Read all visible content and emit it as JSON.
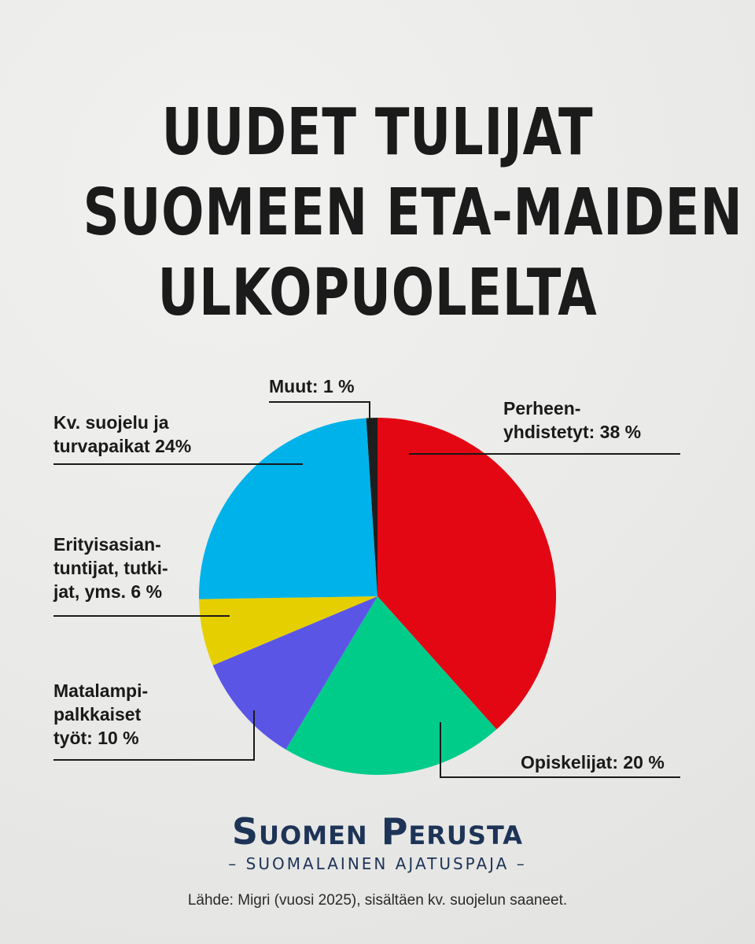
{
  "title": {
    "lines": [
      "UUDET TULIJAT",
      "SUOMEEN ETA-MAIDEN",
      "ULKOPUOLELTA"
    ]
  },
  "chart_data": {
    "type": "pie",
    "start_angle_deg": 0,
    "slices": [
      {
        "label_lines": [
          "Perheen-",
          "yhdistetyt: 38 %"
        ],
        "value": 38,
        "color": "#e30613"
      },
      {
        "label_lines": [
          "Opiskelijat: 20 %"
        ],
        "value": 20,
        "color": "#00cc8a"
      },
      {
        "label_lines": [
          "Matalampi-",
          "palkkaiset",
          "työt: 10 %"
        ],
        "value": 10,
        "color": "#5b55e6"
      },
      {
        "label_lines": [
          "Erityisasian-",
          "tuntijat, tutki-",
          "jat, yms. 6 %"
        ],
        "value": 6,
        "color": "#e5cf00"
      },
      {
        "label_lines": [
          "Kv. suojelu ja",
          "turvapaikat 24%"
        ],
        "value": 24,
        "color": "#00b2ea"
      },
      {
        "label_lines": [
          "Muut: 1 %"
        ],
        "value": 1,
        "color": "#1e1e1e"
      }
    ]
  },
  "brand": {
    "name": "Suomen Perusta",
    "tagline": "– SUOMALAINEN AJATUSPAJA –"
  },
  "source": "Lähde: Migri (vuosi 2025), sisältäen kv. suojelun saaneet."
}
